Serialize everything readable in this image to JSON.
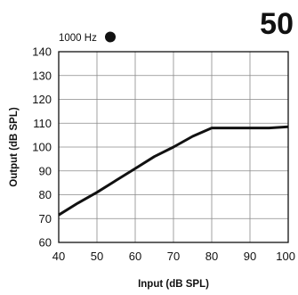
{
  "chart_data": {
    "type": "line",
    "figure_number": "50",
    "legend": {
      "label": "1000 Hz",
      "marker": "filled-circle",
      "placement": "top-left"
    },
    "xlabel": "Input (dB SPL)",
    "ylabel": "Output (dB SPL)",
    "xlim": [
      40,
      100
    ],
    "ylim": [
      60,
      140
    ],
    "xticks": [
      40,
      50,
      60,
      70,
      80,
      90,
      100
    ],
    "yticks": [
      60,
      70,
      80,
      90,
      100,
      110,
      120,
      130,
      140
    ],
    "grid": true,
    "series": [
      {
        "name": "1000 Hz",
        "color": "#111111",
        "x": [
          40,
          45,
          50,
          55,
          60,
          65,
          70,
          75,
          80,
          85,
          90,
          95,
          100
        ],
        "y": [
          71.5,
          76.5,
          81,
          86,
          91,
          96,
          100,
          104.5,
          108,
          108,
          108,
          108,
          108.5
        ]
      }
    ]
  }
}
